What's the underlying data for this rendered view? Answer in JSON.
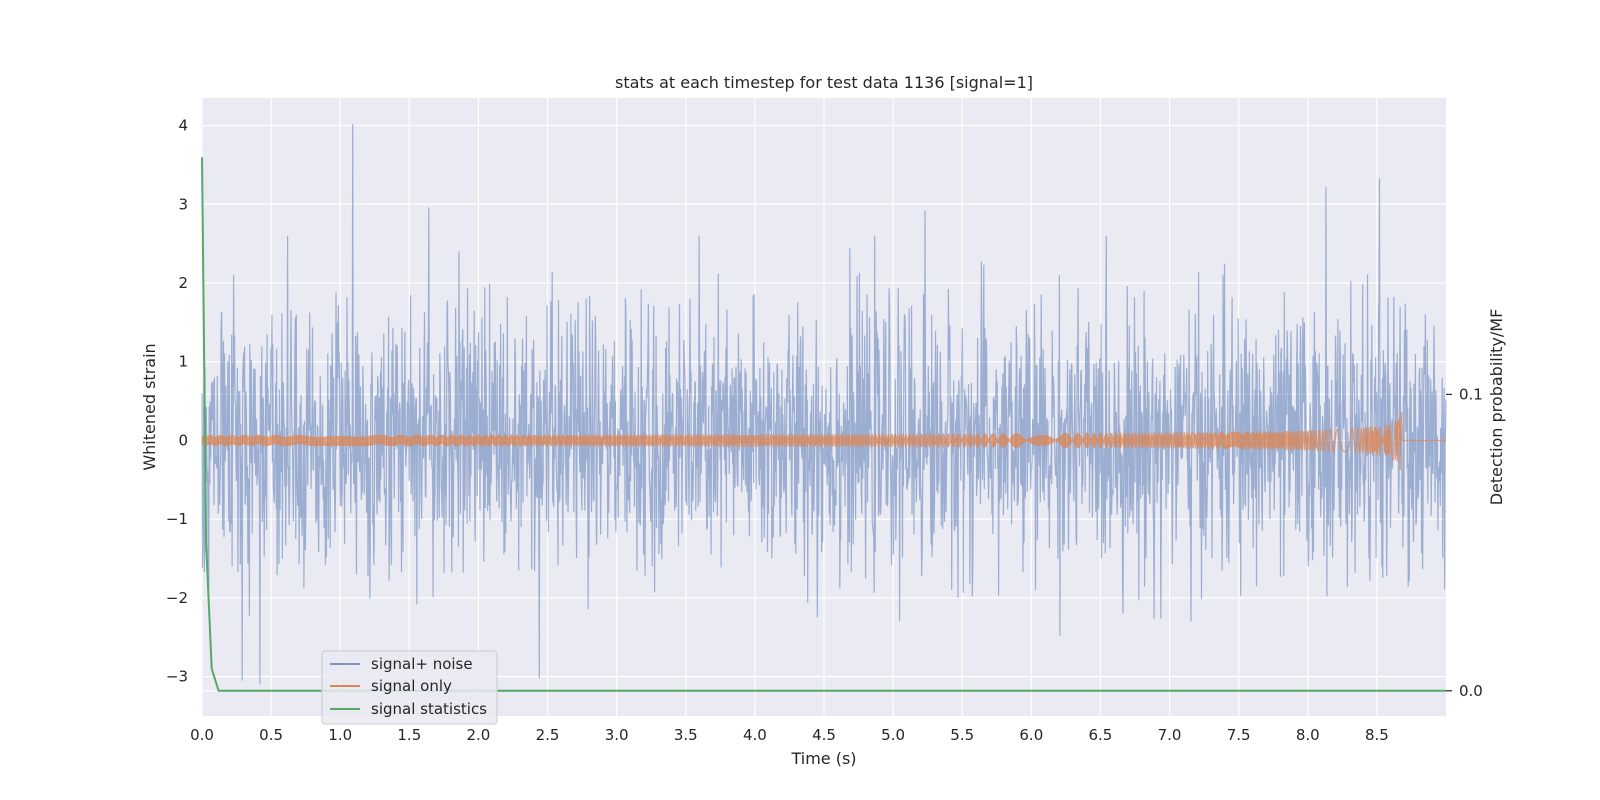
{
  "chart_data": {
    "type": "line",
    "title": "stats at each timestep for test data 1136 [signal=1]",
    "xlabel": "Time (s)",
    "ylabel": "Whitened strain",
    "ylabel_right": "Detection probability/MF",
    "xlim": [
      0.0,
      9.0
    ],
    "ylim": [
      -3.5,
      4.35
    ],
    "ylim_right": [
      -0.0085,
      0.2
    ],
    "x_ticks": [
      "0.0",
      "0.5",
      "1.0",
      "1.5",
      "2.0",
      "2.5",
      "3.0",
      "3.5",
      "4.0",
      "4.5",
      "5.0",
      "5.5",
      "6.0",
      "6.5",
      "7.0",
      "7.5",
      "8.0",
      "8.5"
    ],
    "y_ticks": [
      "4",
      "3",
      "2",
      "1",
      "0",
      "−1",
      "−2",
      "−3"
    ],
    "y_right_ticks": [
      "0.1",
      "0.0"
    ],
    "grid": true,
    "legend_position": "lower-left",
    "series": [
      {
        "name": "signal+ noise",
        "color": "#4c72b0",
        "alpha": 0.5,
        "description": "whitened strain, noise with amplitude roughly ±1.3, peaks up to about 4",
        "x_range": [
          0.0,
          9.0
        ],
        "peaks": [
          {
            "x": 1.09,
            "y": 4.02
          },
          {
            "x": 8.52,
            "y": 3.33
          },
          {
            "x": 8.13,
            "y": 3.22
          },
          {
            "x": 1.64,
            "y": 2.96
          },
          {
            "x": 5.23,
            "y": 2.92
          },
          {
            "x": 0.62,
            "y": 2.6
          },
          {
            "x": 0.42,
            "y": -3.1
          },
          {
            "x": 2.44,
            "y": -3.02
          },
          {
            "x": 0.29,
            "y": -3.05
          }
        ]
      },
      {
        "name": "signal only",
        "color": "#dd8452",
        "description": "chirp waveform growing in amplitude, merger at about 8.68 s",
        "x_range": [
          0.0,
          9.0
        ],
        "merger_time": 8.68,
        "peak_amplitude": 0.5
      },
      {
        "name": "signal statistics",
        "color": "#55a868",
        "axis": "right",
        "x": [
          0.0,
          0.03,
          0.07,
          0.12,
          9.0
        ],
        "y": [
          0.18,
          0.05,
          0.0075,
          0.0,
          0.0
        ]
      }
    ]
  }
}
